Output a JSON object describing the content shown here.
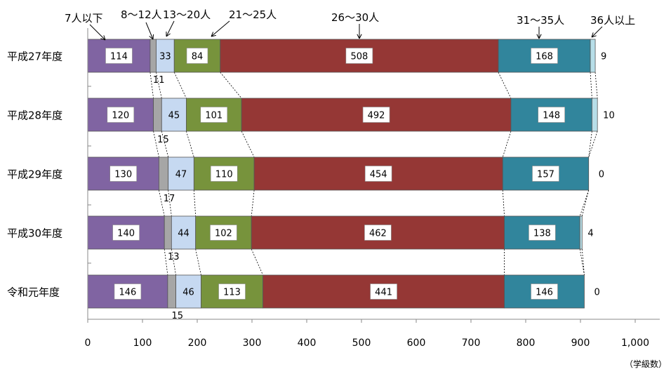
{
  "chart_data": {
    "type": "bar",
    "orientation": "horizontal",
    "stacked": true,
    "categories": [
      "平成27年度",
      "平成28年度",
      "平成29年度",
      "平成30年度",
      "令和元年度"
    ],
    "series": [
      {
        "name": "7人以下",
        "color": "#8064a2",
        "values": [
          114,
          120,
          130,
          140,
          146
        ]
      },
      {
        "name": "8〜12人",
        "color": "#a6a6a6",
        "values": [
          11,
          15,
          17,
          13,
          15
        ]
      },
      {
        "name": "13〜20人",
        "color": "#c6d9f1",
        "values": [
          33,
          45,
          47,
          44,
          46
        ]
      },
      {
        "name": "21〜25人",
        "color": "#77933c",
        "values": [
          84,
          101,
          110,
          102,
          113
        ]
      },
      {
        "name": "26〜30人",
        "color": "#953735",
        "values": [
          508,
          492,
          454,
          462,
          441
        ]
      },
      {
        "name": "31〜35人",
        "color": "#31859c",
        "values": [
          168,
          148,
          157,
          138,
          146
        ]
      },
      {
        "name": "36人以上",
        "color": "#b7dee8",
        "values": [
          9,
          10,
          0,
          4,
          0
        ]
      }
    ],
    "xlim": [
      0,
      1000
    ],
    "xticks": [
      "0",
      "100",
      "200",
      "300",
      "400",
      "500",
      "600",
      "700",
      "800",
      "900",
      "1,000"
    ],
    "unit_label": "（学級数）",
    "grid": false,
    "legend": "callouts-top"
  }
}
